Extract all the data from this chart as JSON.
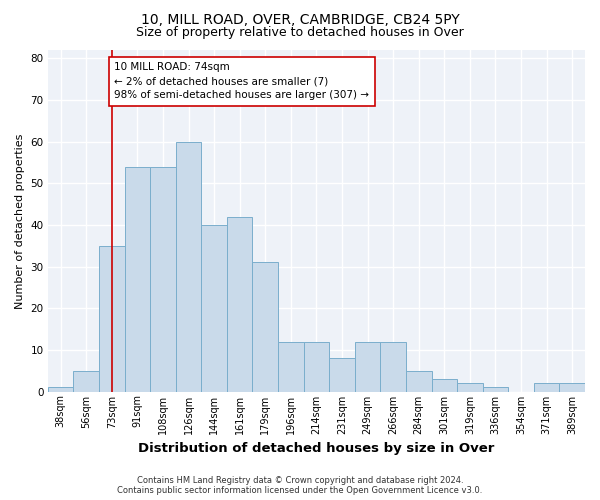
{
  "title": "10, MILL ROAD, OVER, CAMBRIDGE, CB24 5PY",
  "subtitle": "Size of property relative to detached houses in Over",
  "xlabel": "Distribution of detached houses by size in Over",
  "ylabel": "Number of detached properties",
  "categories": [
    "38sqm",
    "56sqm",
    "73sqm",
    "91sqm",
    "108sqm",
    "126sqm",
    "144sqm",
    "161sqm",
    "179sqm",
    "196sqm",
    "214sqm",
    "231sqm",
    "249sqm",
    "266sqm",
    "284sqm",
    "301sqm",
    "319sqm",
    "336sqm",
    "354sqm",
    "371sqm",
    "389sqm"
  ],
  "values": [
    1,
    5,
    35,
    54,
    54,
    60,
    40,
    42,
    31,
    12,
    12,
    8,
    12,
    12,
    5,
    3,
    2,
    1,
    0,
    2,
    2
  ],
  "bar_color": "#c9daea",
  "bar_edge_color": "#7aaecc",
  "reference_line_x": 2,
  "reference_line_color": "#cc0000",
  "annotation_text": "10 MILL ROAD: 74sqm\n← 2% of detached houses are smaller (7)\n98% of semi-detached houses are larger (307) →",
  "annotation_box_color": "#cc0000",
  "ylim": [
    0,
    82
  ],
  "yticks": [
    0,
    10,
    20,
    30,
    40,
    50,
    60,
    70,
    80
  ],
  "background_color": "#eef2f8",
  "footer_line1": "Contains HM Land Registry data © Crown copyright and database right 2024.",
  "footer_line2": "Contains public sector information licensed under the Open Government Licence v3.0.",
  "title_fontsize": 10,
  "subtitle_fontsize": 9,
  "xlabel_fontsize": 9.5,
  "ylabel_fontsize": 8,
  "tick_fontsize": 7,
  "annotation_fontsize": 7.5,
  "footer_fontsize": 6
}
